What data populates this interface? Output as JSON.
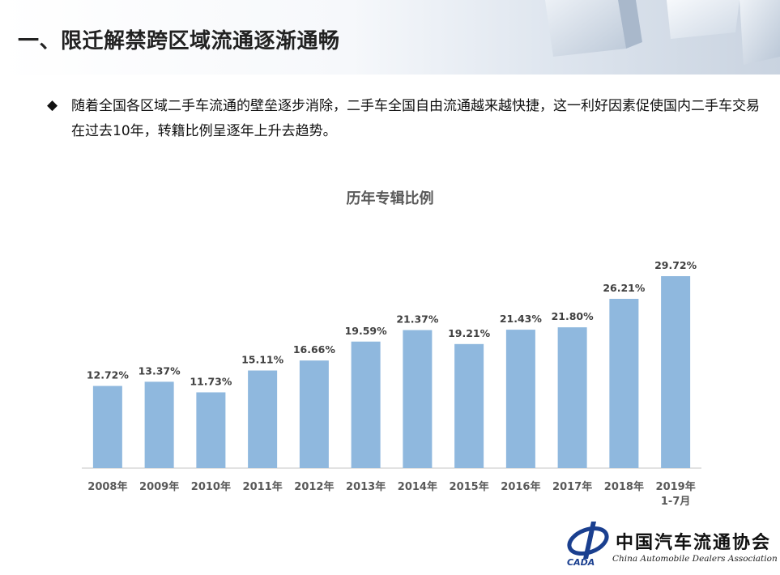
{
  "header": {
    "title": "一、限迁解禁跨区域流通逐渐通畅"
  },
  "bullet": {
    "icon": "diamond-bullet-icon",
    "text": "随着全国各区域二手车流通的壁垒逐步消除，二手车全国自由流通越来越快捷，这一利好因素促使国内二手车交易在过去10年，转籍比例呈逐年上升去趋势。"
  },
  "chart_data": {
    "type": "bar",
    "title": "历年专辑比例",
    "categories": [
      "2008年",
      "2009年",
      "2010年",
      "2011年",
      "2012年",
      "2013年",
      "2014年",
      "2015年",
      "2016年",
      "2017年",
      "2018年",
      "2019年\n1-7月"
    ],
    "values": [
      12.72,
      13.37,
      11.73,
      15.11,
      16.66,
      19.59,
      21.37,
      19.21,
      21.43,
      21.8,
      26.21,
      29.72
    ],
    "data_labels": [
      "12.72%",
      "13.37%",
      "11.73%",
      "15.11%",
      "16.66%",
      "19.59%",
      "21.37%",
      "19.21%",
      "21.43%",
      "21.80%",
      "26.21%",
      "29.72%"
    ],
    "xlabel": "",
    "ylabel": "",
    "ylim": [
      0,
      31.5
    ],
    "grid": false,
    "legend": "none",
    "bar_color": "#8fb8de"
  },
  "logo": {
    "name": "cada-logo-icon",
    "abbr": "CADA",
    "cn": "中国汽车流通协会",
    "en": "China Automobile Dealers Association"
  },
  "colors": {
    "bar": "#8fb8de",
    "axis": "#d9d9d9",
    "label": "#404040"
  }
}
